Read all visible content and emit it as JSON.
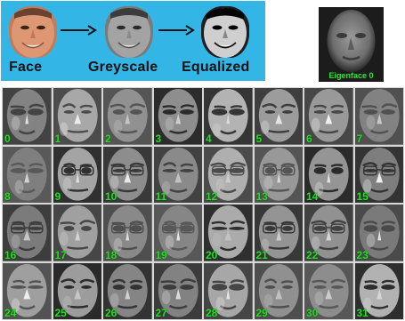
{
  "pipeline": {
    "labels": [
      "Face",
      "Greyscale",
      "Equalized"
    ],
    "stages": [
      "color",
      "grey",
      "equalized"
    ]
  },
  "mean_face": {
    "caption": "Eigenface 0"
  },
  "eigenfaces": {
    "labels": [
      "0",
      "1",
      "2",
      "3",
      "4",
      "5",
      "6",
      "7",
      "8",
      "9",
      "10",
      "11",
      "12",
      "13",
      "14",
      "15",
      "16",
      "17",
      "18",
      "19",
      "20",
      "21",
      "22",
      "23",
      "24",
      "25",
      "26",
      "27",
      "28",
      "29",
      "30",
      "31"
    ],
    "text_color": "#22e022"
  },
  "colors": {
    "banner": "#33b5e6",
    "skin": "#d98a68",
    "label_green": "#2ee82e"
  }
}
